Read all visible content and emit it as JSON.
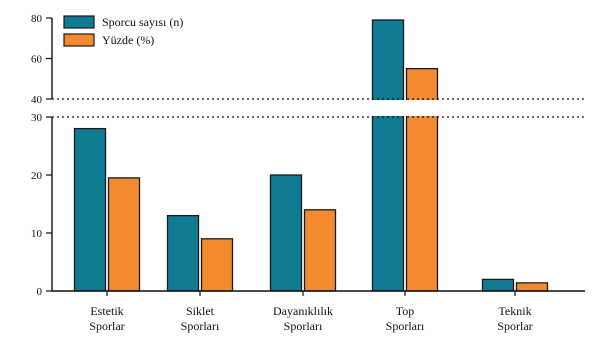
{
  "chart_data": {
    "type": "bar",
    "categories": [
      [
        "Estetik",
        "Sporlar"
      ],
      [
        "Siklet",
        "Sporları"
      ],
      [
        "Dayanıklılık",
        "Sporları"
      ],
      [
        "Top",
        "Sporları"
      ],
      [
        "Teknik",
        "Sporlar"
      ]
    ],
    "series": [
      {
        "name": "Sporcu sayısı (n)",
        "values": [
          28,
          13,
          20,
          79,
          2
        ],
        "color": "#0f7c93"
      },
      {
        "name": "Yüzde (%)",
        "values": [
          19.5,
          9,
          14,
          55,
          1.4
        ],
        "color": "#f28a30"
      }
    ],
    "y_axis": {
      "lower_ticks": [
        0,
        10,
        20,
        30
      ],
      "upper_ticks": [
        40,
        60,
        80
      ],
      "lower_range": [
        0,
        30
      ],
      "upper_range": [
        40,
        80
      ],
      "broken": true
    },
    "legend": "top-left",
    "grid": false
  }
}
